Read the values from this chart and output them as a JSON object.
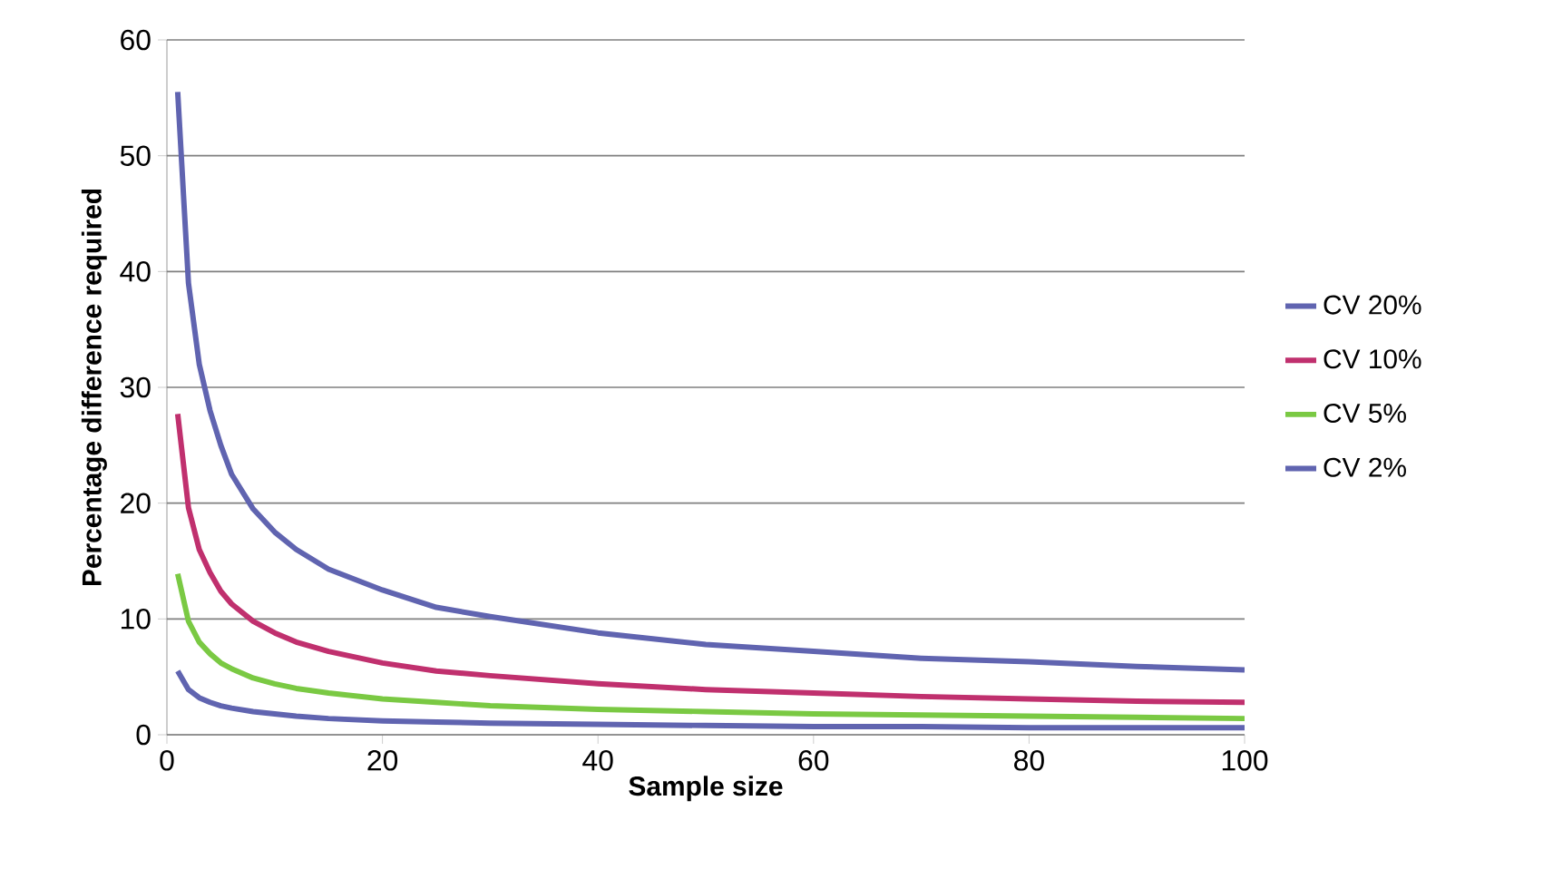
{
  "chart_data": {
    "type": "line",
    "xlabel": "Sample size",
    "ylabel": "Percentage difference required",
    "x": [
      1,
      2,
      3,
      4,
      5,
      6,
      8,
      10,
      12,
      15,
      20,
      25,
      30,
      40,
      50,
      60,
      70,
      80,
      90,
      100
    ],
    "series": [
      {
        "name": "CV 20%",
        "color": "#6064b0",
        "values": [
          55.5,
          39,
          32,
          28,
          25,
          22.5,
          19.5,
          17.5,
          16,
          14.3,
          12.5,
          11,
          10.2,
          8.8,
          7.8,
          7.2,
          6.6,
          6.3,
          5.9,
          5.6
        ]
      },
      {
        "name": "CV 10%",
        "color": "#c0306e",
        "values": [
          27.7,
          19.6,
          16,
          14,
          12.4,
          11.3,
          9.8,
          8.8,
          8,
          7.2,
          6.2,
          5.5,
          5.1,
          4.4,
          3.9,
          3.6,
          3.3,
          3.1,
          2.9,
          2.8
        ]
      },
      {
        "name": "CV 5%",
        "color": "#7ac943",
        "values": [
          13.9,
          9.8,
          8,
          7,
          6.2,
          5.7,
          4.9,
          4.4,
          4,
          3.6,
          3.1,
          2.8,
          2.5,
          2.2,
          2,
          1.8,
          1.7,
          1.6,
          1.5,
          1.4
        ]
      },
      {
        "name": "CV 2%",
        "color": "#6064b0",
        "values": [
          5.5,
          3.9,
          3.2,
          2.8,
          2.5,
          2.3,
          2,
          1.8,
          1.6,
          1.4,
          1.2,
          1.1,
          1.0,
          0.9,
          0.8,
          0.7,
          0.7,
          0.6,
          0.6,
          0.6
        ]
      }
    ],
    "xlim": [
      0,
      100
    ],
    "xticks": [
      0,
      20,
      40,
      60,
      80,
      100
    ],
    "ylim": [
      0,
      60
    ],
    "yticks": [
      0,
      10,
      20,
      30,
      40,
      50,
      60
    ],
    "grid": "y",
    "legend": "right",
    "marker": "none",
    "line_style": "solid"
  }
}
